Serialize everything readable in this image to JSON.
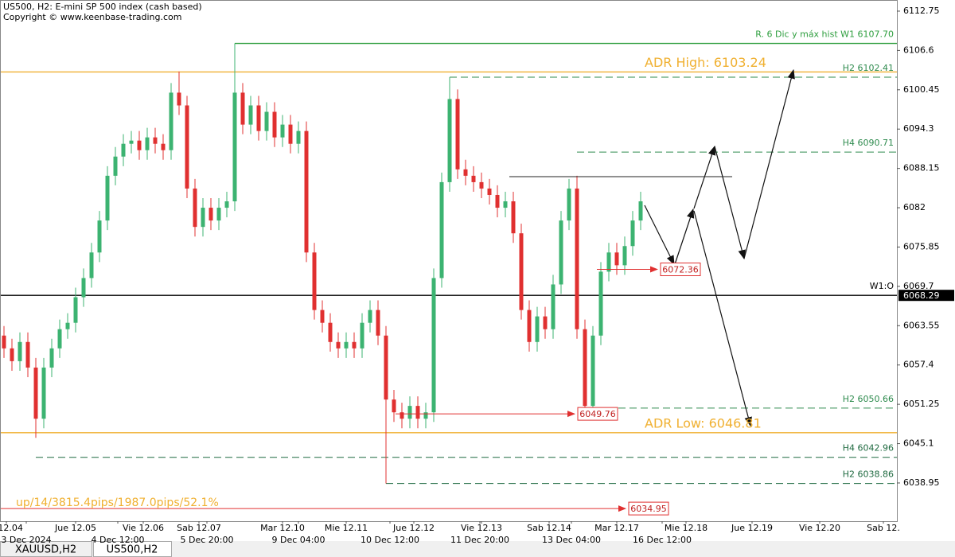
{
  "chart_data": {
    "type": "candlestick",
    "title": "US500, H2:  E-mini SP 500 index (cash based)",
    "subtitle": "Copyright © www.keenbase-trading.com",
    "stats_text": "up/14/3815.4pips/1987.0pips/52.1%",
    "tabs": [
      "XAUUSD,H2",
      "US500,H2"
    ],
    "active_tab": 1,
    "up_color": "#3cb371",
    "down_color": "#e03030",
    "xlim": [
      -0.5,
      112.2
    ],
    "ylim": [
      6032.97,
      6114.49
    ],
    "yticks": [
      6112.75,
      6106.6,
      6100.45,
      6094.3,
      6088.15,
      6082,
      6075.85,
      6069.7,
      6063.55,
      6057.4,
      6051.25,
      6045.1,
      6038.95
    ],
    "xticks": [
      {
        "value": 0.3,
        "label": "e 12.04"
      },
      {
        "value": 9,
        "label": "Jue 12.05"
      },
      {
        "value": 17.5,
        "label": "Vie 12.06"
      },
      {
        "value": 24.5,
        "label": "Sab 12.07"
      },
      {
        "value": 35,
        "label": "Mar 12.10"
      },
      {
        "value": 43,
        "label": "Mie 12.11"
      },
      {
        "value": 51.5,
        "label": "Jue 12.12"
      },
      {
        "value": 60,
        "label": "Vie 12.13"
      },
      {
        "value": 68.5,
        "label": "Sab 12.14"
      },
      {
        "value": 77,
        "label": "Mar 12.17"
      },
      {
        "value": 85.7,
        "label": "Mie 12.18"
      },
      {
        "value": 94,
        "label": "Jue 12.19"
      },
      {
        "value": 102.5,
        "label": "Vie 12.20"
      },
      {
        "value": 110.5,
        "label": "Sab 12."
      }
    ],
    "xticks_dates": [
      {
        "value": 2.8,
        "label": "3 Dec 2024"
      },
      {
        "value": 14.3,
        "label": "4 Dec 12:00"
      },
      {
        "value": 25.5,
        "label": "5 Dec 20:00"
      },
      {
        "value": 37,
        "label": "9 Dec 04:00"
      },
      {
        "value": 48.5,
        "label": "10 Dec 12:00"
      },
      {
        "value": 59.8,
        "label": "11 Dec 20:00"
      },
      {
        "value": 71.3,
        "label": "13 Dec 04:00"
      },
      {
        "value": 82.7,
        "label": "16 Dec 12:00"
      }
    ],
    "open": [
      6062,
      6060,
      6058,
      6061,
      6057,
      6049,
      6057,
      6060,
      6063,
      6064,
      6068,
      6071,
      6075,
      6080,
      6087,
      6090,
      6092,
      6092.5,
      6091,
      6093,
      6092,
      6091,
      6100,
      6098,
      6085,
      6079,
      6082,
      6080,
      6082,
      6083,
      6100,
      6095,
      6098,
      6094,
      6097,
      6093,
      6095,
      6092,
      6094,
      6075,
      6066,
      6064,
      6061,
      6060,
      6061,
      6060,
      6064,
      6066,
      6062,
      6052,
      6050,
      6049,
      6051,
      6049,
      6050,
      6071,
      6086,
      6099,
      6088,
      6087,
      6086,
      6085,
      6084,
      6082,
      6083,
      6078,
      6066,
      6061,
      6065,
      6063,
      6070,
      6080,
      6085,
      6063,
      6051,
      6062,
      6072,
      6075,
      6073,
      6076,
      6080
    ],
    "high": [
      6063.5,
      6061.5,
      6062.5,
      6062.5,
      6058.5,
      6058.5,
      6061.5,
      6064.5,
      6065.5,
      6069.5,
      6072.5,
      6076.5,
      6081.5,
      6088.5,
      6091.5,
      6093.5,
      6094,
      6094,
      6094.5,
      6094.5,
      6093.5,
      6101.5,
      6103.3,
      6099.5,
      6086.5,
      6083.5,
      6083.5,
      6083.5,
      6084.5,
      6107.7,
      6101.5,
      6099.5,
      6099.5,
      6098.5,
      6098.5,
      6096.5,
      6096.5,
      6095.5,
      6095.5,
      6076.5,
      6067.5,
      6065.5,
      6062.5,
      6062.5,
      6062.5,
      6065.5,
      6067.5,
      6067.5,
      6063.5,
      6053.5,
      6051.5,
      6052.5,
      6052.5,
      6051.5,
      6072.5,
      6087.5,
      6102.4,
      6100.5,
      6089.5,
      6088.5,
      6087.5,
      6086.5,
      6085.5,
      6084.5,
      6084.5,
      6079.5,
      6067.5,
      6066.5,
      6066.5,
      6071.5,
      6081.5,
      6086.5,
      6087,
      6064.5,
      6063.5,
      6073.5,
      6076.5,
      6076.5,
      6077.5,
      6081.5,
      6084.5
    ],
    "low": [
      6058.5,
      6056.5,
      6056.5,
      6055.5,
      6046,
      6047.5,
      6055.5,
      6058.5,
      6061.5,
      6062.5,
      6066.5,
      6069.5,
      6073.5,
      6078.5,
      6085.5,
      6088.5,
      6090.5,
      6089.5,
      6089.5,
      6090.5,
      6089.5,
      6089.5,
      6096.5,
      6083.5,
      6077.5,
      6077.5,
      6078.5,
      6078.5,
      6080.5,
      6081.5,
      6093.5,
      6093.5,
      6092.5,
      6092.5,
      6091.5,
      6091.5,
      6090.5,
      6090.5,
      6073.5,
      6064.5,
      6062.5,
      6059.5,
      6058.5,
      6058.5,
      6058.5,
      6058.5,
      6062.5,
      6060.5,
      6038.86,
      6048.5,
      6047.5,
      6047.5,
      6047.5,
      6047.5,
      6048.5,
      6069.5,
      6084.5,
      6086.5,
      6085.5,
      6084.5,
      6083.5,
      6082.5,
      6080.5,
      6080.5,
      6076.5,
      6064.5,
      6059.5,
      6059.5,
      6061.5,
      6061.5,
      6068.5,
      6078.5,
      6061.5,
      6049.76,
      6050,
      6060.5,
      6070.5,
      6071.5,
      6071.5,
      6074.5,
      6078.5
    ],
    "close": [
      6060,
      6058,
      6061,
      6057,
      6049,
      6057,
      6060,
      6063,
      6064,
      6068,
      6071,
      6075,
      6080,
      6087,
      6090,
      6092,
      6092.5,
      6091,
      6093,
      6092,
      6091,
      6100,
      6098,
      6085,
      6079,
      6082,
      6080,
      6082,
      6083,
      6100,
      6095,
      6098,
      6094,
      6097,
      6093,
      6095,
      6092,
      6094,
      6075,
      6066,
      6064,
      6061,
      6060,
      6061,
      6060,
      6064,
      6066,
      6062,
      6052,
      6050,
      6049,
      6051,
      6049,
      6050,
      6071,
      6086,
      6099,
      6088,
      6087,
      6086,
      6085,
      6084,
      6082,
      6083,
      6078,
      6066,
      6061,
      6065,
      6063,
      6070,
      6080,
      6085,
      6063,
      6051,
      6062,
      6072,
      6075,
      6073,
      6076,
      6080,
      6083
    ],
    "levels": [
      {
        "label": "R. 6 Dic y máx hist W1 6107.70",
        "value": 6107.7,
        "color": "#2e9e3e",
        "dash": false,
        "from": 29
      },
      {
        "label": "ADR High: 6103.24",
        "value": 6103.24,
        "color": "#f0b030",
        "dash": false,
        "from": null
      },
      {
        "label": "H2 6102.41",
        "value": 6102.41,
        "color": "#2e8b4e",
        "dash": true,
        "from": 56
      },
      {
        "label": "H4 6090.71",
        "value": 6090.71,
        "color": "#2e8b4e",
        "dash": true,
        "from": 72
      },
      {
        "label": "W1:O",
        "value": 6068.29,
        "color": "#000000",
        "dash": false,
        "from": null
      },
      {
        "label": "H2 6050.66",
        "value": 6050.66,
        "color": "#2e8b4e",
        "dash": true,
        "from": 73
      },
      {
        "label": "ADR Low: 6046.81",
        "value": 6046.81,
        "color": "#f0b030",
        "dash": false,
        "from": null
      },
      {
        "label": "H4 6042.96",
        "value": 6042.96,
        "color": "#1f6a40",
        "dash": true,
        "from": 4
      },
      {
        "label": "H2 6038.86",
        "value": 6038.86,
        "color": "#1f6a40",
        "dash": true,
        "from": 48
      }
    ],
    "last_price": 6068.29,
    "price_labels": [
      {
        "value": 6072.36,
        "from": 74.5,
        "at": 82.5
      },
      {
        "value": 6049.76,
        "from": 49.2,
        "at": 72.1
      },
      {
        "value": 6034.95,
        "from": -0.5,
        "at": 78.5
      }
    ]
  }
}
